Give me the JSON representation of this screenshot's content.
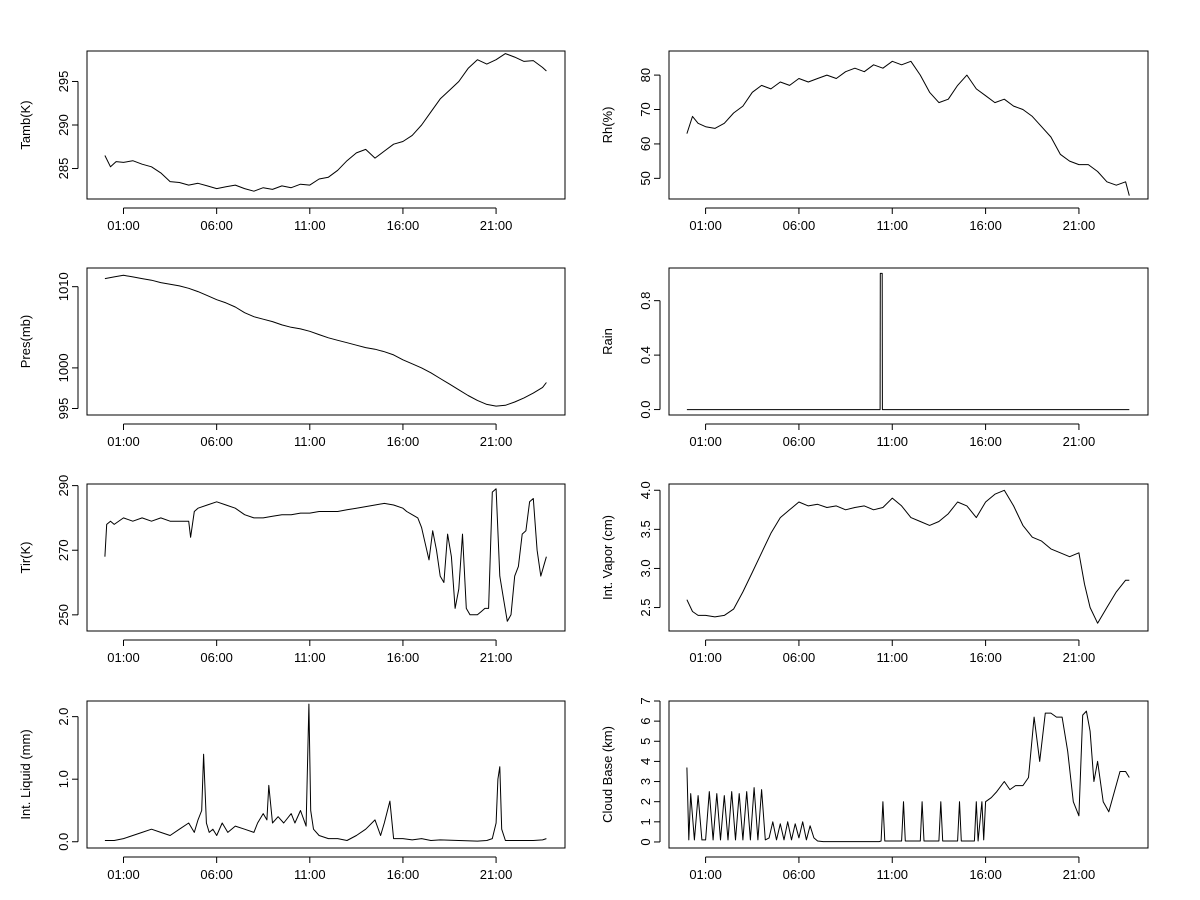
{
  "x_ticks": [
    "01:00",
    "06:00",
    "11:00",
    "16:00",
    "21:00"
  ],
  "chart_data": [
    {
      "type": "line",
      "ylabel": "Tamb(K)",
      "yticks": [
        285,
        290,
        295
      ],
      "ylim": [
        281.5,
        298.5
      ],
      "xlim": [
        -0.96,
        24.7
      ],
      "grid": false,
      "x": [
        0,
        0.3,
        0.6,
        1,
        1.5,
        2,
        2.5,
        3,
        3.5,
        4,
        4.5,
        5,
        5.5,
        6,
        6.5,
        7,
        7.5,
        8,
        8.5,
        9,
        9.5,
        10,
        10.5,
        11,
        11.5,
        12,
        12.5,
        13,
        13.5,
        14,
        14.5,
        15,
        15.5,
        16,
        16.5,
        17,
        17.5,
        18,
        18.5,
        19,
        19.5,
        20,
        20.5,
        21,
        21.5,
        22,
        22.5,
        23,
        23.5,
        23.7
      ],
      "y": [
        286.5,
        285.2,
        285.8,
        285.7,
        285.9,
        285.5,
        285.2,
        284.5,
        283.5,
        283.4,
        283.1,
        283.3,
        283,
        282.7,
        282.9,
        283.1,
        282.7,
        282.4,
        282.8,
        282.6,
        283,
        282.8,
        283.2,
        283.1,
        283.8,
        284,
        284.8,
        285.9,
        286.8,
        287.2,
        286.2,
        287,
        287.8,
        288.1,
        288.8,
        290,
        291.5,
        293,
        294,
        295,
        296.5,
        297.5,
        297,
        297.5,
        298.2,
        297.8,
        297.3,
        297.4,
        296.6,
        296.2
      ]
    },
    {
      "type": "line",
      "ylabel": "Rh(%)",
      "yticks": [
        50,
        60,
        70,
        80
      ],
      "ylim": [
        44,
        87
      ],
      "xlim": [
        -0.96,
        24.7
      ],
      "grid": false,
      "x": [
        0,
        0.3,
        0.6,
        1,
        1.5,
        2,
        2.5,
        3,
        3.5,
        4,
        4.5,
        5,
        5.5,
        6,
        6.5,
        7,
        7.5,
        8,
        8.5,
        9,
        9.5,
        10,
        10.5,
        11,
        11.5,
        12,
        12.5,
        13,
        13.5,
        14,
        14.5,
        15,
        15.5,
        16,
        16.5,
        17,
        17.5,
        18,
        18.5,
        19,
        19.5,
        20,
        20.5,
        21,
        21.5,
        22,
        22.5,
        23,
        23.5,
        23.7
      ],
      "y": [
        63,
        68,
        66,
        65,
        64.5,
        66,
        69,
        71,
        75,
        77,
        76,
        78,
        77,
        79,
        78,
        79,
        80,
        79,
        81,
        82,
        81,
        83,
        82,
        84,
        83,
        84,
        80,
        75,
        72,
        73,
        77,
        80,
        76,
        74,
        72,
        73,
        71,
        70,
        68,
        65,
        62,
        57,
        55,
        54,
        54,
        52,
        49,
        48,
        49,
        45
      ]
    },
    {
      "type": "line",
      "ylabel": "Pres(mb)",
      "yticks": [
        995,
        1000,
        1010
      ],
      "ylim": [
        994.2,
        1012.3
      ],
      "xlim": [
        -0.96,
        24.7
      ],
      "grid": false,
      "x": [
        0,
        0.5,
        1,
        1.5,
        2,
        2.5,
        3,
        3.5,
        4,
        4.5,
        5,
        5.5,
        6,
        6.5,
        7,
        7.5,
        8,
        8.5,
        9,
        9.5,
        10,
        10.5,
        11,
        11.5,
        12,
        12.5,
        13,
        13.5,
        14,
        14.5,
        15,
        15.5,
        16,
        16.5,
        17,
        17.5,
        18,
        18.5,
        19,
        19.5,
        20,
        20.5,
        21,
        21.5,
        22,
        22.5,
        23,
        23.5,
        23.7
      ],
      "y": [
        1011,
        1011.2,
        1011.4,
        1011.2,
        1011,
        1010.8,
        1010.5,
        1010.3,
        1010.1,
        1009.8,
        1009.4,
        1008.9,
        1008.4,
        1008,
        1007.5,
        1006.8,
        1006.3,
        1006,
        1005.7,
        1005.3,
        1005,
        1004.8,
        1004.5,
        1004.1,
        1003.7,
        1003.4,
        1003.1,
        1002.8,
        1002.5,
        1002.3,
        1002,
        1001.6,
        1001,
        1000.5,
        1000,
        999.4,
        998.7,
        998,
        997.3,
        996.6,
        996,
        995.5,
        995.3,
        995.4,
        995.8,
        996.3,
        996.9,
        997.6,
        998.2
      ]
    },
    {
      "type": "line",
      "ylabel": "Rain",
      "yticks": [
        0.0,
        0.4,
        0.8
      ],
      "ytick_labels": [
        "0.0",
        "0.4",
        "0.8"
      ],
      "ylim": [
        -0.04,
        1.04
      ],
      "xlim": [
        -0.96,
        24.7
      ],
      "grid": false,
      "x": [
        0,
        10.35,
        10.36,
        10.46,
        10.47,
        23.7
      ],
      "y": [
        0,
        0,
        1,
        1,
        0,
        0
      ]
    },
    {
      "type": "line",
      "ylabel": "Tir(K)",
      "yticks": [
        250,
        270,
        290
      ],
      "ylim": [
        245,
        290.5
      ],
      "xlim": [
        -0.96,
        24.7
      ],
      "grid": false,
      "x": [
        0,
        0.1,
        0.3,
        0.5,
        1,
        1.5,
        2,
        2.5,
        3,
        3.5,
        4,
        4.5,
        4.6,
        4.8,
        5,
        5.5,
        6,
        6.5,
        7,
        7.5,
        8,
        8.5,
        9,
        9.5,
        10,
        10.5,
        11,
        11.5,
        12,
        12.5,
        13,
        13.5,
        14,
        14.5,
        15,
        15.5,
        16,
        16.2,
        16.5,
        16.8,
        17,
        17.2,
        17.4,
        17.6,
        17.8,
        18,
        18.2,
        18.4,
        18.6,
        18.8,
        19,
        19.2,
        19.4,
        19.6,
        19.8,
        20,
        20.2,
        20.4,
        20.6,
        20.8,
        21,
        21.2,
        21.4,
        21.6,
        21.8,
        22,
        22.2,
        22.4,
        22.6,
        22.8,
        23,
        23.2,
        23.4,
        23.6,
        23.7
      ],
      "y": [
        268,
        278,
        279,
        278,
        280,
        279,
        280,
        279,
        280,
        279,
        279,
        279,
        274,
        282,
        283,
        284,
        285,
        284,
        283,
        281,
        280,
        280,
        280.5,
        281,
        281,
        281.5,
        281.5,
        282,
        282,
        282,
        282.5,
        283,
        283.5,
        284,
        284.5,
        284,
        283,
        282,
        281,
        280,
        277,
        272,
        267,
        276,
        270,
        262,
        260,
        275,
        268,
        252,
        258,
        275,
        252,
        250,
        250,
        250,
        251,
        252,
        252,
        288,
        289,
        262,
        255,
        248,
        250,
        262,
        265,
        275,
        276,
        285,
        286,
        270,
        262,
        266,
        268
      ]
    },
    {
      "type": "line",
      "ylabel": "Int. Vapor (cm)",
      "yticks": [
        2.5,
        3.0,
        3.5,
        4.0
      ],
      "ytick_labels": [
        "2.5",
        "3.0",
        "3.5",
        "4.0"
      ],
      "ylim": [
        2.2,
        4.08
      ],
      "xlim": [
        -0.96,
        24.7
      ],
      "grid": false,
      "x": [
        0,
        0.3,
        0.6,
        1,
        1.5,
        2,
        2.5,
        3,
        3.5,
        4,
        4.5,
        5,
        5.5,
        6,
        6.5,
        7,
        7.5,
        8,
        8.5,
        9,
        9.5,
        10,
        10.5,
        11,
        11.5,
        12,
        12.5,
        13,
        13.5,
        14,
        14.5,
        15,
        15.5,
        16,
        16.5,
        17,
        17.5,
        18,
        18.5,
        19,
        19.5,
        20,
        20.5,
        21,
        21.3,
        21.6,
        22,
        22.5,
        23,
        23.5,
        23.7
      ],
      "y": [
        2.6,
        2.45,
        2.4,
        2.4,
        2.38,
        2.4,
        2.48,
        2.7,
        2.95,
        3.2,
        3.45,
        3.65,
        3.75,
        3.85,
        3.8,
        3.82,
        3.78,
        3.8,
        3.75,
        3.78,
        3.8,
        3.75,
        3.78,
        3.9,
        3.8,
        3.65,
        3.6,
        3.55,
        3.6,
        3.7,
        3.85,
        3.8,
        3.65,
        3.85,
        3.95,
        4.0,
        3.8,
        3.55,
        3.4,
        3.35,
        3.25,
        3.2,
        3.15,
        3.2,
        2.8,
        2.5,
        2.3,
        2.5,
        2.7,
        2.85,
        2.85
      ]
    },
    {
      "type": "line",
      "ylabel": "Int. Liquid (mm)",
      "yticks": [
        0.0,
        1.0,
        2.0
      ],
      "ytick_labels": [
        "0.0",
        "1.0",
        "2.0"
      ],
      "ylim": [
        -0.1,
        2.25
      ],
      "xlim": [
        -0.96,
        24.7
      ],
      "grid": false,
      "x": [
        0,
        0.5,
        1,
        1.5,
        2,
        2.5,
        3,
        3.5,
        4,
        4.5,
        4.8,
        5,
        5.2,
        5.3,
        5.45,
        5.6,
        5.8,
        6,
        6.3,
        6.6,
        7,
        7.5,
        8,
        8.2,
        8.5,
        8.7,
        8.8,
        9,
        9.3,
        9.6,
        10,
        10.2,
        10.5,
        10.8,
        10.95,
        11.05,
        11.2,
        11.5,
        12,
        12.5,
        13,
        13.5,
        14,
        14.5,
        14.8,
        15,
        15.3,
        15.5,
        16,
        16.5,
        17,
        17.5,
        18,
        19,
        20,
        20.5,
        20.8,
        21,
        21.1,
        21.2,
        21.3,
        21.5,
        22,
        22.5,
        23,
        23.5,
        23.7
      ],
      "y": [
        0.02,
        0.02,
        0.05,
        0.1,
        0.15,
        0.2,
        0.15,
        0.1,
        0.2,
        0.3,
        0.15,
        0.35,
        0.5,
        1.4,
        0.3,
        0.15,
        0.2,
        0.1,
        0.3,
        0.15,
        0.25,
        0.2,
        0.15,
        0.3,
        0.45,
        0.35,
        0.9,
        0.3,
        0.4,
        0.3,
        0.45,
        0.3,
        0.5,
        0.25,
        2.2,
        0.5,
        0.2,
        0.1,
        0.05,
        0.05,
        0.02,
        0.1,
        0.2,
        0.35,
        0.1,
        0.3,
        0.65,
        0.05,
        0.05,
        0.03,
        0.05,
        0.02,
        0.03,
        0.02,
        0.01,
        0.02,
        0.05,
        0.3,
        1.0,
        1.2,
        0.2,
        0.02,
        0.02,
        0.02,
        0.02,
        0.03,
        0.05
      ]
    },
    {
      "type": "line",
      "ylabel": "Cloud Base (km)",
      "yticks": [
        0,
        1,
        2,
        3,
        4,
        5,
        6,
        7
      ],
      "ylim": [
        -0.3,
        7.0
      ],
      "xlim": [
        -0.96,
        24.7
      ],
      "grid": false,
      "x": [
        0,
        0.1,
        0.2,
        0.4,
        0.6,
        0.8,
        1,
        1.2,
        1.4,
        1.6,
        1.8,
        2,
        2.2,
        2.4,
        2.6,
        2.8,
        3,
        3.2,
        3.4,
        3.6,
        3.8,
        4,
        4.2,
        4.4,
        4.6,
        4.8,
        5,
        5.2,
        5.4,
        5.6,
        5.8,
        6,
        6.2,
        6.4,
        6.6,
        6.8,
        7,
        7.3,
        7.6,
        8,
        9,
        10,
        10.3,
        10.4,
        10.5,
        10.6,
        11,
        11.5,
        11.6,
        11.7,
        12,
        12.5,
        12.6,
        12.7,
        13,
        13.5,
        13.6,
        13.7,
        14,
        14.5,
        14.6,
        14.7,
        15,
        15.4,
        15.5,
        15.6,
        15.8,
        15.9,
        16,
        16.3,
        16.6,
        17,
        17.3,
        17.6,
        18,
        18.3,
        18.6,
        18.9,
        19.2,
        19.5,
        19.8,
        20.1,
        20.4,
        20.7,
        21,
        21.2,
        21.4,
        21.6,
        21.8,
        22,
        22.3,
        22.6,
        22.9,
        23.2,
        23.5,
        23.7
      ],
      "y": [
        3.7,
        0.1,
        2.4,
        0.1,
        2.3,
        0.1,
        0.1,
        2.5,
        0.1,
        2.4,
        0.1,
        2.3,
        0.1,
        2.5,
        0.1,
        2.4,
        0.1,
        2.5,
        0.1,
        2.7,
        0.1,
        2.6,
        0.1,
        0.2,
        1.0,
        0.1,
        0.9,
        0.1,
        1.0,
        0.1,
        0.9,
        0.2,
        1.0,
        0.1,
        0.8,
        0.2,
        0.05,
        0.02,
        0.02,
        0.02,
        0.02,
        0.02,
        0.02,
        0.05,
        2.0,
        0.05,
        0.05,
        0.05,
        2.0,
        0.05,
        0.05,
        0.05,
        2.0,
        0.05,
        0.05,
        0.05,
        2.0,
        0.05,
        0.05,
        0.05,
        2.0,
        0.05,
        0.05,
        0.05,
        2.0,
        0.05,
        2.0,
        0.1,
        2.0,
        2.2,
        2.5,
        3.0,
        2.6,
        2.8,
        2.8,
        3.2,
        6.2,
        4.0,
        6.4,
        6.4,
        6.2,
        6.2,
        4.5,
        2.0,
        1.3,
        6.3,
        6.5,
        5.5,
        3.0,
        4.0,
        2.0,
        1.5,
        2.5,
        3.5,
        3.5,
        3.2
      ]
    }
  ]
}
